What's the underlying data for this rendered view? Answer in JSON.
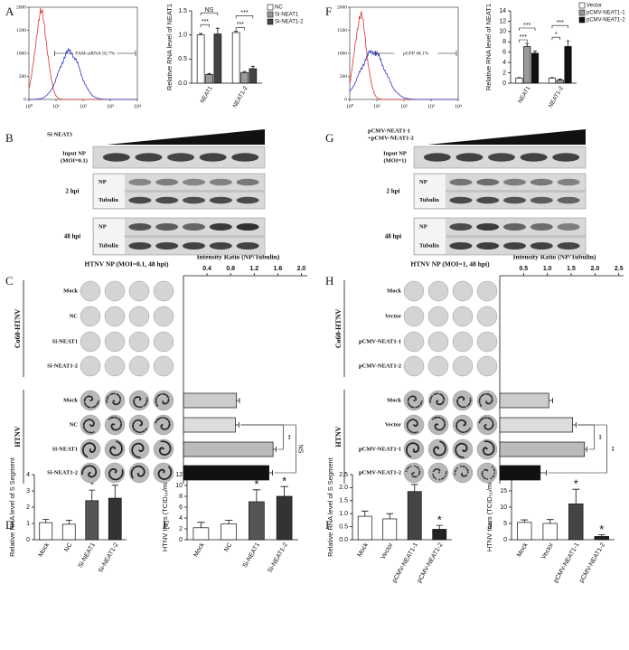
{
  "panel_labels": [
    "A",
    "B",
    "C",
    "D",
    "E",
    "F",
    "G",
    "H",
    "I",
    "J"
  ],
  "chart_data": [
    {
      "type": "flow",
      "annotation": "FAM-siRNA 92.7%",
      "ylim": [
        0,
        2000
      ],
      "yticks": [
        0,
        500,
        1000,
        1500,
        2000
      ],
      "xlim": [
        1,
        10000
      ],
      "log_x": true,
      "xticks": [
        {
          "value": 1,
          "label": "10⁰"
        },
        {
          "value": 10,
          "label": "10¹"
        },
        {
          "value": 100,
          "label": "10²"
        },
        {
          "value": 1000,
          "label": "10³"
        },
        {
          "value": 10000,
          "label": "10⁴"
        }
      ],
      "colors": [
        "#e03030",
        "#3434c4"
      ]
    },
    {
      "type": "grouped-bar",
      "ylabel": "Relative RNA level of NEAT1",
      "categories": [
        "NEAT1",
        "NEAT1-2"
      ],
      "series": [
        {
          "name": "NC",
          "color": "#ffffff",
          "values": [
            1.0,
            1.05
          ],
          "errors": [
            0.03,
            0.03
          ]
        },
        {
          "name": "Si-NEAT1",
          "color": "#999999",
          "values": [
            0.18,
            0.22
          ],
          "errors": [
            0.02,
            0.02
          ]
        },
        {
          "name": "Si-NEAT1-2",
          "color": "#444444",
          "values": [
            1.02,
            0.3
          ],
          "errors": [
            0.12,
            0.05
          ]
        }
      ],
      "ylim": [
        0,
        1.5
      ],
      "yticks": [
        {
          "value": 0,
          "label": "0.0"
        },
        {
          "value": 0.5,
          "label": "0.5"
        },
        {
          "value": 1,
          "label": "1.0"
        },
        {
          "value": 1.5,
          "label": "1.5"
        }
      ],
      "annotations": [
        "NS",
        "***",
        "***",
        "***"
      ]
    },
    {
      "type": "flow",
      "annotation": "pGFP 48.1%",
      "ylim": [
        0,
        2000
      ],
      "yticks": [
        0,
        500,
        1000,
        1500,
        2000
      ],
      "xlim": [
        1,
        10000
      ],
      "log_x": true,
      "xticks": [
        {
          "value": 1,
          "label": "10⁰"
        },
        {
          "value": 10,
          "label": "10¹"
        },
        {
          "value": 100,
          "label": "10²"
        },
        {
          "value": 1000,
          "label": "10³"
        },
        {
          "value": 10000,
          "label": "10⁴"
        }
      ],
      "colors": [
        "#e03030",
        "#3434c4"
      ]
    },
    {
      "type": "grouped-bar",
      "ylabel": "Relative RNA level of NEAT1",
      "categories": [
        "NEAT1",
        "NEAT1-2"
      ],
      "series": [
        {
          "name": "Vector",
          "color": "#ffffff",
          "values": [
            1.0,
            1.0
          ],
          "errors": [
            0.1,
            0.1
          ]
        },
        {
          "name": "pCMV-NEAT1-1",
          "color": "#999999",
          "values": [
            7.1,
            0.6
          ],
          "errors": [
            0.6,
            0.2
          ]
        },
        {
          "name": "pCMV-NEAT1-2",
          "color": "#111111",
          "values": [
            5.8,
            7.1
          ],
          "errors": [
            0.4,
            1.1
          ]
        }
      ],
      "ylim": [
        0,
        14
      ],
      "yticks": [
        0,
        2,
        4,
        6,
        8,
        10,
        12,
        14
      ],
      "annotations": [
        "***",
        "***",
        "*",
        "***"
      ]
    },
    {
      "type": "hbar",
      "title": "Intensity Ratio (NP/Tubulin)",
      "xlim": [
        0,
        2.1
      ],
      "xticks": [
        0.4,
        0.8,
        1.2,
        1.6,
        {
          "value": 2,
          "label": "2.0"
        }
      ],
      "values": [
        0.9,
        0.88,
        1.52,
        1.45
      ],
      "errors": [
        0.05,
        0.06,
        0.05,
        0.06
      ],
      "colors": [
        "#cccccc",
        "#dddddd",
        "#bbbbbb",
        "#111111"
      ],
      "annotations": [
        "**",
        "NS"
      ]
    },
    {
      "type": "hbar",
      "title": "Intensity Ratio (NP/Tubulin)",
      "xlim": [
        0,
        2.6
      ],
      "xticks": [
        0.5,
        {
          "value": 1,
          "label": "1.0"
        },
        1.5,
        {
          "value": 2,
          "label": "2.0"
        },
        2.5
      ],
      "values": [
        1.03,
        1.53,
        1.78,
        0.85
      ],
      "errors": [
        0.08,
        0.07,
        0.05,
        0.13
      ],
      "colors": [
        "#cccccc",
        "#dddddd",
        "#bbbbbb",
        "#111111"
      ],
      "annotations": [
        "**",
        "**"
      ]
    },
    {
      "type": "bar",
      "ylabel": "Relative RNA level of S Segment",
      "categories": [
        "Mock",
        "NC",
        "Si-NEAT1",
        "Si-NEAT1-2"
      ],
      "values": [
        1.05,
        0.95,
        2.4,
        2.55
      ],
      "errors": [
        0.2,
        0.25,
        0.65,
        0.8
      ],
      "colors": [
        "#ffffff",
        "#ffffff",
        "#555555",
        "#333333"
      ],
      "ylim": [
        0,
        4
      ],
      "yticks": [
        0,
        1,
        2,
        3,
        4
      ],
      "annotations": [
        "*",
        "*"
      ]
    },
    {
      "type": "bar",
      "ylabel": "HTNV titers (TCID₅₀/ml) x 10³",
      "categories": [
        "Mock",
        "NC",
        "Si-NEAT1",
        "Si-NEAT1-2"
      ],
      "values": [
        2.2,
        2.9,
        7.0,
        8.0
      ],
      "errors": [
        1.0,
        0.7,
        2.2,
        1.8
      ],
      "colors": [
        "#ffffff",
        "#ffffff",
        "#555555",
        "#333333"
      ],
      "ylim": [
        0,
        12
      ],
      "yticks": [
        0,
        2,
        4,
        6,
        8,
        10,
        12
      ],
      "annotations": [
        "*",
        "*"
      ]
    },
    {
      "type": "bar",
      "ylabel": "Relative RNA level of S Segment",
      "categories": [
        "Mock",
        "Vector",
        "pCMV-NEAT1-1",
        "pCMV-NEAT1-2"
      ],
      "values": [
        0.9,
        0.8,
        1.85,
        0.4
      ],
      "errors": [
        0.2,
        0.2,
        0.27,
        0.15
      ],
      "colors": [
        "#ffffff",
        "#ffffff",
        "#444444",
        "#222222"
      ],
      "ylim": [
        0,
        2.5
      ],
      "yticks": [
        {
          "value": 0,
          "label": "0.0"
        },
        0.5,
        {
          "value": 1,
          "label": "1.0"
        },
        1.5,
        {
          "value": 2,
          "label": "2.0"
        },
        2.5
      ],
      "annotations": [
        "**",
        "*"
      ]
    },
    {
      "type": "bar",
      "ylabel": "HTNV titers (TCID₅₀/ml) x 10³",
      "categories": [
        "Mock",
        "Vector",
        "pCMV-NEAT1-1",
        "pCMV-NEAT1-2"
      ],
      "values": [
        5.3,
        5.0,
        11.0,
        1.0
      ],
      "errors": [
        0.8,
        1.2,
        4.5,
        0.5
      ],
      "colors": [
        "#ffffff",
        "#ffffff",
        "#444444",
        "#222222"
      ],
      "ylim": [
        0,
        20
      ],
      "yticks": [
        0,
        5,
        10,
        15,
        20
      ],
      "annotations": [
        "*",
        "*"
      ]
    }
  ],
  "blots": [
    {
      "treatment": [
        "Si-NEAT1"
      ],
      "input": [
        "Input NP",
        "(MOI=0.1)"
      ],
      "times": [
        {
          "label": "2 hpi",
          "bands": [
            "NP",
            "Tubulin"
          ]
        },
        {
          "label": "48 hpi",
          "bands": [
            "NP",
            "Tubulin"
          ]
        }
      ]
    },
    {
      "treatment": [
        "pCMV-NEAT1-1",
        "+pCMV-NEAT1-2"
      ],
      "input": [
        "Input NP",
        "(MOI=1)"
      ],
      "times": [
        {
          "label": "2 hpi",
          "bands": [
            "NP",
            "Tubulin"
          ]
        },
        {
          "label": "48 hpi",
          "bands": [
            "NP",
            "Tubulin"
          ]
        }
      ]
    }
  ],
  "plates": [
    {
      "title": "HTNV NP (MOI=0.1, 48 hpi)",
      "groups": [
        {
          "name": "Co60-HTNV",
          "rows": [
            "Mock",
            "NC",
            "Si-NEAT1",
            "Si-NEAT1-2"
          ]
        },
        {
          "name": "HTNV",
          "rows": [
            "Mock",
            "NC",
            "Si-NEAT1",
            "Si-NEAT1-2"
          ]
        }
      ]
    },
    {
      "title": "HTNV NP (MOI=1, 48 hpi)",
      "groups": [
        {
          "name": "Co60-HTNV",
          "rows": [
            "Mock",
            "Vector",
            "pCMV-NEAT1-1",
            "pCMV-NEAT1-2"
          ]
        },
        {
          "name": "HTNV",
          "rows": [
            "Mock",
            "Vector",
            "pCMV-NEAT1-1",
            "pCMV-NEAT1-2"
          ]
        }
      ]
    }
  ]
}
